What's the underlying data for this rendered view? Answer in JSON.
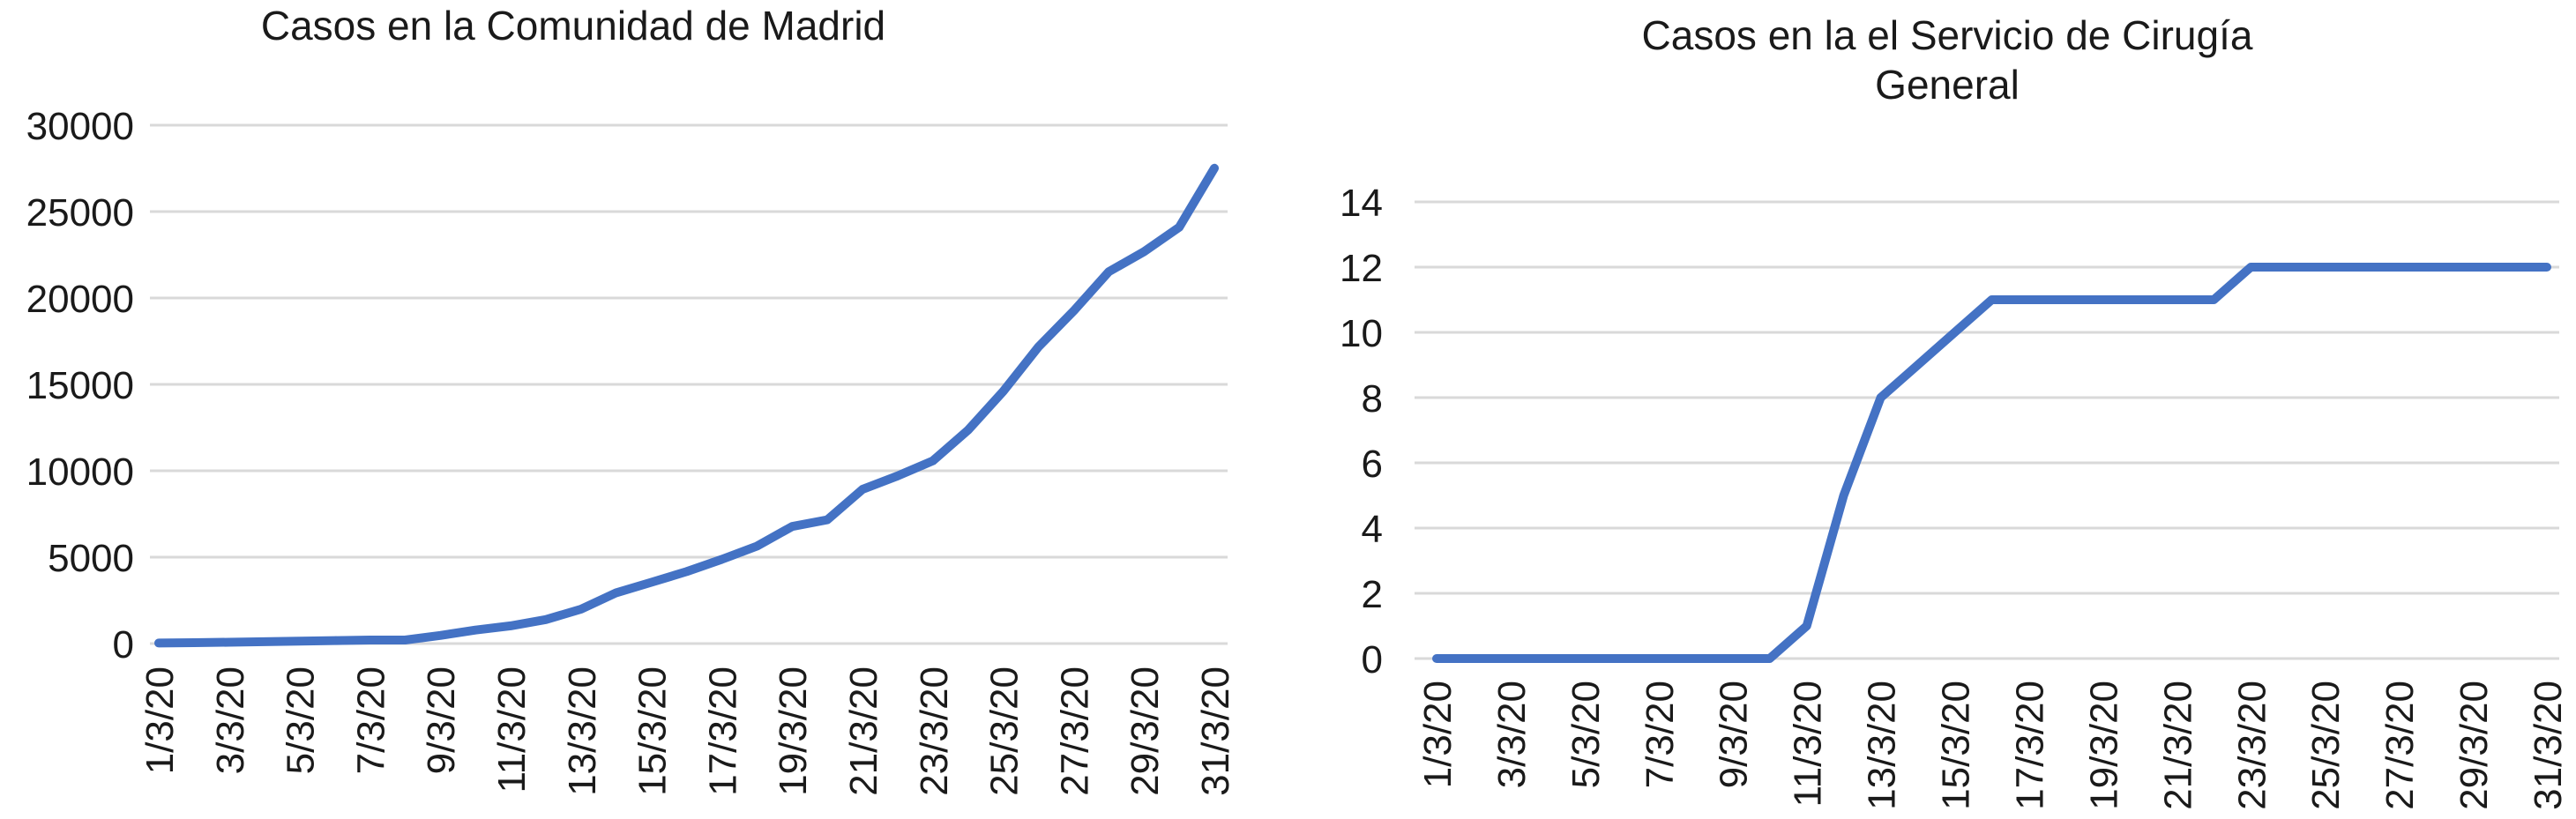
{
  "figure": {
    "background": "#ffffff",
    "text_color": "#1a1a1a"
  },
  "chart_data": [
    {
      "id": "madrid-cases",
      "type": "line",
      "title": "Casos en la Comunidad de Madrid",
      "title_lines": [
        "Casos en la Comunidad de Madrid"
      ],
      "xlabel": "",
      "ylabel": "",
      "x": [
        "1/3/20",
        "2/3/20",
        "3/3/20",
        "4/3/20",
        "5/3/20",
        "6/3/20",
        "7/3/20",
        "8/3/20",
        "9/3/20",
        "10/3/20",
        "11/3/20",
        "12/3/20",
        "13/3/20",
        "14/3/20",
        "15/3/20",
        "16/3/20",
        "17/3/20",
        "18/3/20",
        "19/3/20",
        "20/3/20",
        "21/3/20",
        "22/3/20",
        "23/3/20",
        "24/3/20",
        "25/3/20",
        "26/3/20",
        "27/3/20",
        "28/3/20",
        "29/3/20",
        "30/3/20",
        "31/3/20"
      ],
      "x_tick_labels": [
        "1/3/20",
        "3/3/20",
        "5/3/20",
        "7/3/20",
        "9/3/20",
        "11/3/20",
        "13/3/20",
        "15/3/20",
        "17/3/20",
        "19/3/20",
        "21/3/20",
        "23/3/20",
        "25/3/20",
        "27/3/20",
        "29/3/20",
        "31/3/20"
      ],
      "values": [
        30,
        49,
        76,
        107,
        141,
        174,
        202,
        202,
        469,
        782,
        1024,
        1388,
        1990,
        2940,
        3544,
        4165,
        4871,
        5637,
        6777,
        7165,
        8921,
        9702,
        10575,
        12352,
        14597,
        17166,
        19243,
        21520,
        22677,
        24090,
        27509
      ],
      "ylim": [
        0,
        30000
      ],
      "y_ticks": [
        0,
        5000,
        10000,
        15000,
        20000,
        25000,
        30000
      ],
      "grid": true,
      "legend": "none",
      "line_color": "#4472C4",
      "grid_color": "#D9D9D9",
      "x_label_rotation_deg": -90
    },
    {
      "id": "surgery-service-cases",
      "type": "line",
      "title": "Casos en la el Servicio de Cirugía General",
      "title_lines": [
        "Casos en la el Servicio de Cirugía",
        "General"
      ],
      "xlabel": "",
      "ylabel": "",
      "x": [
        "1/3/20",
        "2/3/20",
        "3/3/20",
        "4/3/20",
        "5/3/20",
        "6/3/20",
        "7/3/20",
        "8/3/20",
        "9/3/20",
        "10/3/20",
        "11/3/20",
        "12/3/20",
        "13/3/20",
        "14/3/20",
        "15/3/20",
        "16/3/20",
        "17/3/20",
        "18/3/20",
        "19/3/20",
        "20/3/20",
        "21/3/20",
        "22/3/20",
        "23/3/20",
        "24/3/20",
        "25/3/20",
        "26/3/20",
        "27/3/20",
        "28/3/20",
        "29/3/20",
        "30/3/20",
        "31/3/20"
      ],
      "x_tick_labels": [
        "1/3/20",
        "3/3/20",
        "5/3/20",
        "7/3/20",
        "9/3/20",
        "11/3/20",
        "13/3/20",
        "15/3/20",
        "17/3/20",
        "19/3/20",
        "21/3/20",
        "23/3/20",
        "25/3/20",
        "27/3/20",
        "29/3/20",
        "31/3/20"
      ],
      "values": [
        0,
        0,
        0,
        0,
        0,
        0,
        0,
        0,
        0,
        0,
        1,
        5,
        8,
        9,
        10,
        11,
        11,
        11,
        11,
        11,
        11,
        11,
        12,
        12,
        12,
        12,
        12,
        12,
        12,
        12,
        12
      ],
      "ylim": [
        0,
        14
      ],
      "y_ticks": [
        0,
        2,
        4,
        6,
        8,
        10,
        12,
        14
      ],
      "grid": true,
      "legend": "none",
      "line_color": "#4472C4",
      "grid_color": "#D9D9D9",
      "x_label_rotation_deg": -90
    }
  ]
}
